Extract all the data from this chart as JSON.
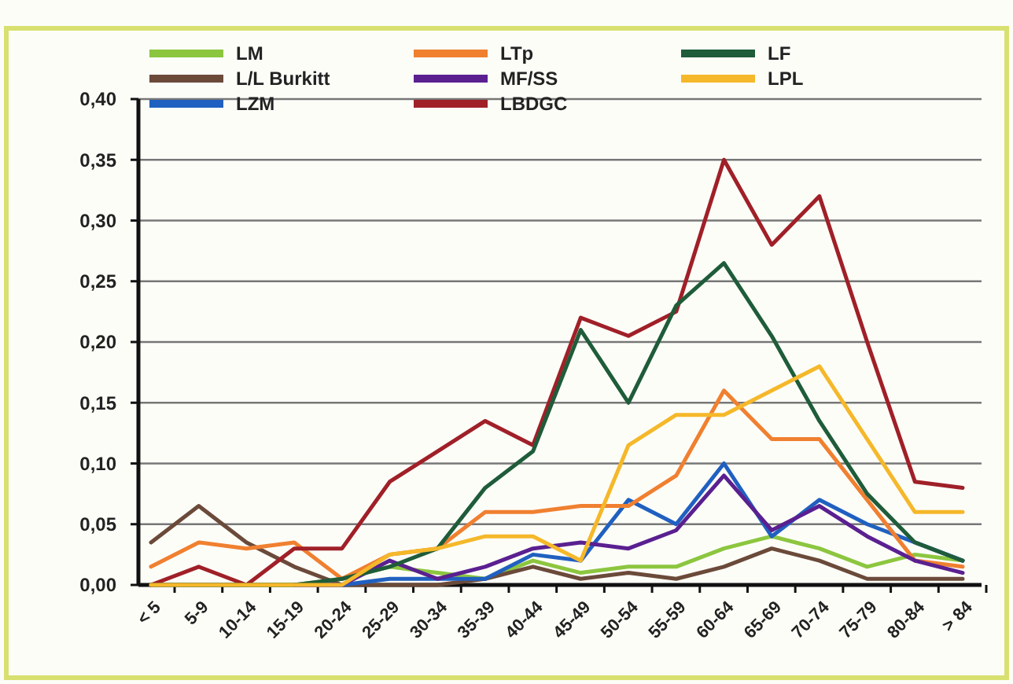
{
  "chart_data": {
    "type": "line",
    "categories": [
      "< 5",
      "5-9",
      "10-14",
      "15-19",
      "20-24",
      "25-29",
      "30-34",
      "35-39",
      "40-44",
      "45-49",
      "50-54",
      "55-59",
      "60-64",
      "65-69",
      "70-74",
      "75-79",
      "80-84",
      "> 84"
    ],
    "series": [
      {
        "name": "LM",
        "color": "#8cc63f",
        "values": [
          null,
          null,
          0,
          0,
          0.005,
          0.015,
          0.01,
          0.005,
          0.02,
          0.01,
          0.015,
          0.015,
          0.03,
          0.04,
          0.03,
          0.015,
          0.025,
          0.02
        ]
      },
      {
        "name": "L/L Burkitt",
        "color": "#6b4a3a",
        "values": [
          0.035,
          0.065,
          0.035,
          0.015,
          0,
          0,
          0,
          0.005,
          0.015,
          0.005,
          0.01,
          0.005,
          0.015,
          0.03,
          0.02,
          0.005,
          0.005,
          0.005
        ]
      },
      {
        "name": "LZM",
        "color": "#2060c0",
        "values": [
          null,
          null,
          null,
          0,
          0,
          0.005,
          0.005,
          0.005,
          0.025,
          0.02,
          0.07,
          0.05,
          0.1,
          0.04,
          0.07,
          0.05,
          0.035,
          0.02
        ]
      },
      {
        "name": "LTp",
        "color": "#f08030",
        "values": [
          0.015,
          0.035,
          0.03,
          0.035,
          0.005,
          0.025,
          0.03,
          0.06,
          0.06,
          0.065,
          0.065,
          0.09,
          0.16,
          0.12,
          0.12,
          0.07,
          0.02,
          0.015
        ]
      },
      {
        "name": "MF/SS",
        "color": "#5a2090",
        "values": [
          null,
          null,
          null,
          0,
          0,
          0.02,
          0.005,
          0.015,
          0.03,
          0.035,
          0.03,
          0.045,
          0.09,
          0.045,
          0.065,
          0.04,
          0.02,
          0.01
        ]
      },
      {
        "name": "LBDGC",
        "color": "#a02028",
        "values": [
          0,
          0.015,
          0,
          0.03,
          0.03,
          0.085,
          0.11,
          0.135,
          0.115,
          0.22,
          0.205,
          0.225,
          0.35,
          0.28,
          0.32,
          0.2,
          0.085,
          0.08
        ]
      },
      {
        "name": "LF",
        "color": "#1f5c3a",
        "values": [
          0,
          0,
          0,
          0,
          0.005,
          0.015,
          0.03,
          0.08,
          0.11,
          0.21,
          0.15,
          0.23,
          0.265,
          0.205,
          0.135,
          0.075,
          0.035,
          0.02
        ]
      },
      {
        "name": "LPL",
        "color": "#f5b82a",
        "values": [
          0,
          0,
          0,
          0,
          0,
          0.025,
          0.03,
          0.04,
          0.04,
          0.02,
          0.115,
          0.14,
          0.14,
          0.16,
          0.18,
          0.12,
          0.06,
          0.06
        ]
      }
    ],
    "ylim": [
      0,
      0.4
    ],
    "yticks": [
      {
        "value": 0,
        "label": "0,00"
      },
      {
        "value": 0.05,
        "label": "0,05"
      },
      {
        "value": 0.1,
        "label": "0,10"
      },
      {
        "value": 0.15,
        "label": "0,15"
      },
      {
        "value": 0.2,
        "label": "0,20"
      },
      {
        "value": 0.25,
        "label": "0,25"
      },
      {
        "value": 0.3,
        "label": "0,30"
      },
      {
        "value": 0.35,
        "label": "0,35"
      },
      {
        "value": 0.4,
        "label": "0,40"
      }
    ],
    "grid": "y",
    "legend": "top"
  }
}
